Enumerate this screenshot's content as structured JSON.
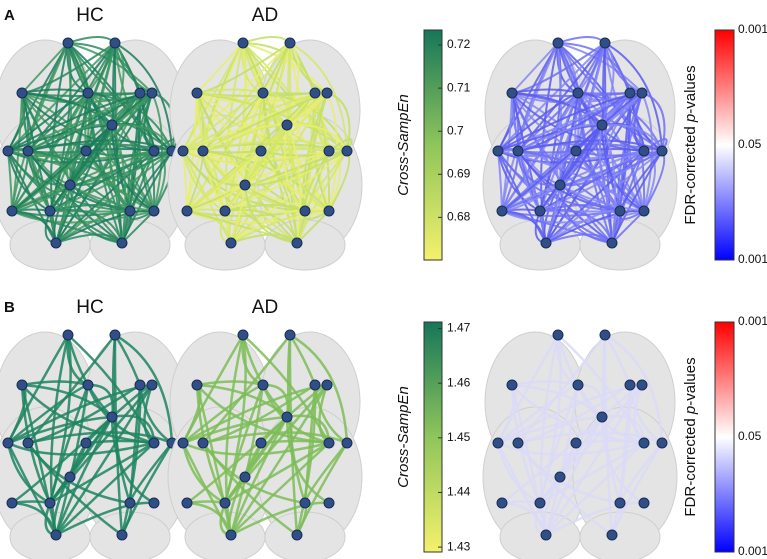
{
  "panels": [
    {
      "label": "A",
      "groups": [
        "HC",
        "AD"
      ],
      "colorbar": {
        "label": "Cross-SampEn",
        "lim": [
          0.6701,
          0.7235
        ],
        "ticks": [
          0.72,
          0.71,
          0.7,
          0.69,
          0.68
        ]
      },
      "pbar": {
        "label": [
          "FDR-corrected ",
          "p",
          "-values"
        ],
        "ticks": [
          0.001,
          0.05,
          0.001
        ]
      }
    },
    {
      "label": "B",
      "groups": [
        "HC",
        "AD"
      ],
      "colorbar": {
        "label": "Cross-SampEn",
        "lim": [
          1.4291,
          1.4712
        ],
        "ticks": [
          1.47,
          1.46,
          1.45,
          1.44,
          1.43
        ]
      },
      "pbar": {
        "label": [
          "FDR-corrected ",
          "p",
          "-values"
        ],
        "ticks": [
          0.001,
          0.05,
          0.001
        ]
      }
    }
  ]
}
